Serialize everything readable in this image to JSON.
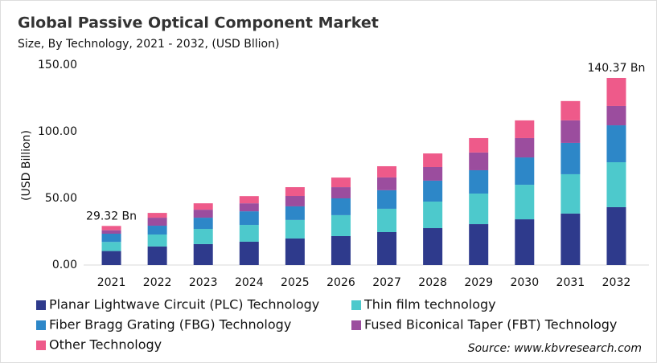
{
  "chart_data": {
    "type": "stacked-bar",
    "title": "Global Passive Optical Component Market",
    "subtitle": "Size, By Technology, 2021 - 2032, (USD Bllion)",
    "y_label": "(USD Billion)",
    "source": "Source: www.kbvresearch.com",
    "categories": [
      "2021",
      "2022",
      "2023",
      "2024",
      "2025",
      "2026",
      "2027",
      "2028",
      "2029",
      "2030",
      "2031",
      "2032"
    ],
    "series": [
      {
        "name": "Planar Lightwave Circuit (PLC) Technology",
        "color": "#2e3a8c",
        "values": [
          10.5,
          13.9,
          15.7,
          17.5,
          19.9,
          21.7,
          24.7,
          27.7,
          30.7,
          34.3,
          38.6,
          43.4
        ]
      },
      {
        "name": "Thin film technology",
        "color": "#4dc9cc",
        "values": [
          6.8,
          9,
          11.4,
          12.6,
          13.9,
          15.7,
          17.5,
          19.9,
          22.9,
          25.9,
          29.5,
          33.7
        ]
      },
      {
        "name": "Fiber Bragg Grating (FBG) Technology",
        "color": "#2d87c8",
        "values": [
          6.2,
          6.6,
          8.4,
          10.2,
          10.2,
          12.6,
          13.9,
          15.7,
          17.5,
          20.5,
          23.5,
          27.7
        ]
      },
      {
        "name": "Fused Biconical Taper (FBT) Technology",
        "color": "#9b4d9e",
        "values": [
          2.6,
          6,
          6,
          6,
          7.8,
          8.4,
          9.6,
          10.2,
          13.3,
          14.5,
          16.9,
          14.5
        ]
      },
      {
        "name": "Other Technology",
        "color": "#ee5a8a",
        "values": [
          3.22,
          3.6,
          4.8,
          5.4,
          6.6,
          7.2,
          8.4,
          10.2,
          10.8,
          13.3,
          14.5,
          21.07
        ]
      }
    ],
    "annotations": [
      {
        "x": "2021",
        "value": 29.32,
        "text": "29.32 Bn"
      },
      {
        "x": "2032",
        "value": 140.37,
        "text": "140.37 Bn"
      }
    ],
    "ylim": [
      0,
      150
    ],
    "yticks": [
      {
        "value": 0,
        "label": "0.00"
      },
      {
        "value": 50,
        "label": "50.00"
      },
      {
        "value": 100,
        "label": "100.00"
      },
      {
        "value": 150,
        "label": "150.00"
      }
    ]
  }
}
